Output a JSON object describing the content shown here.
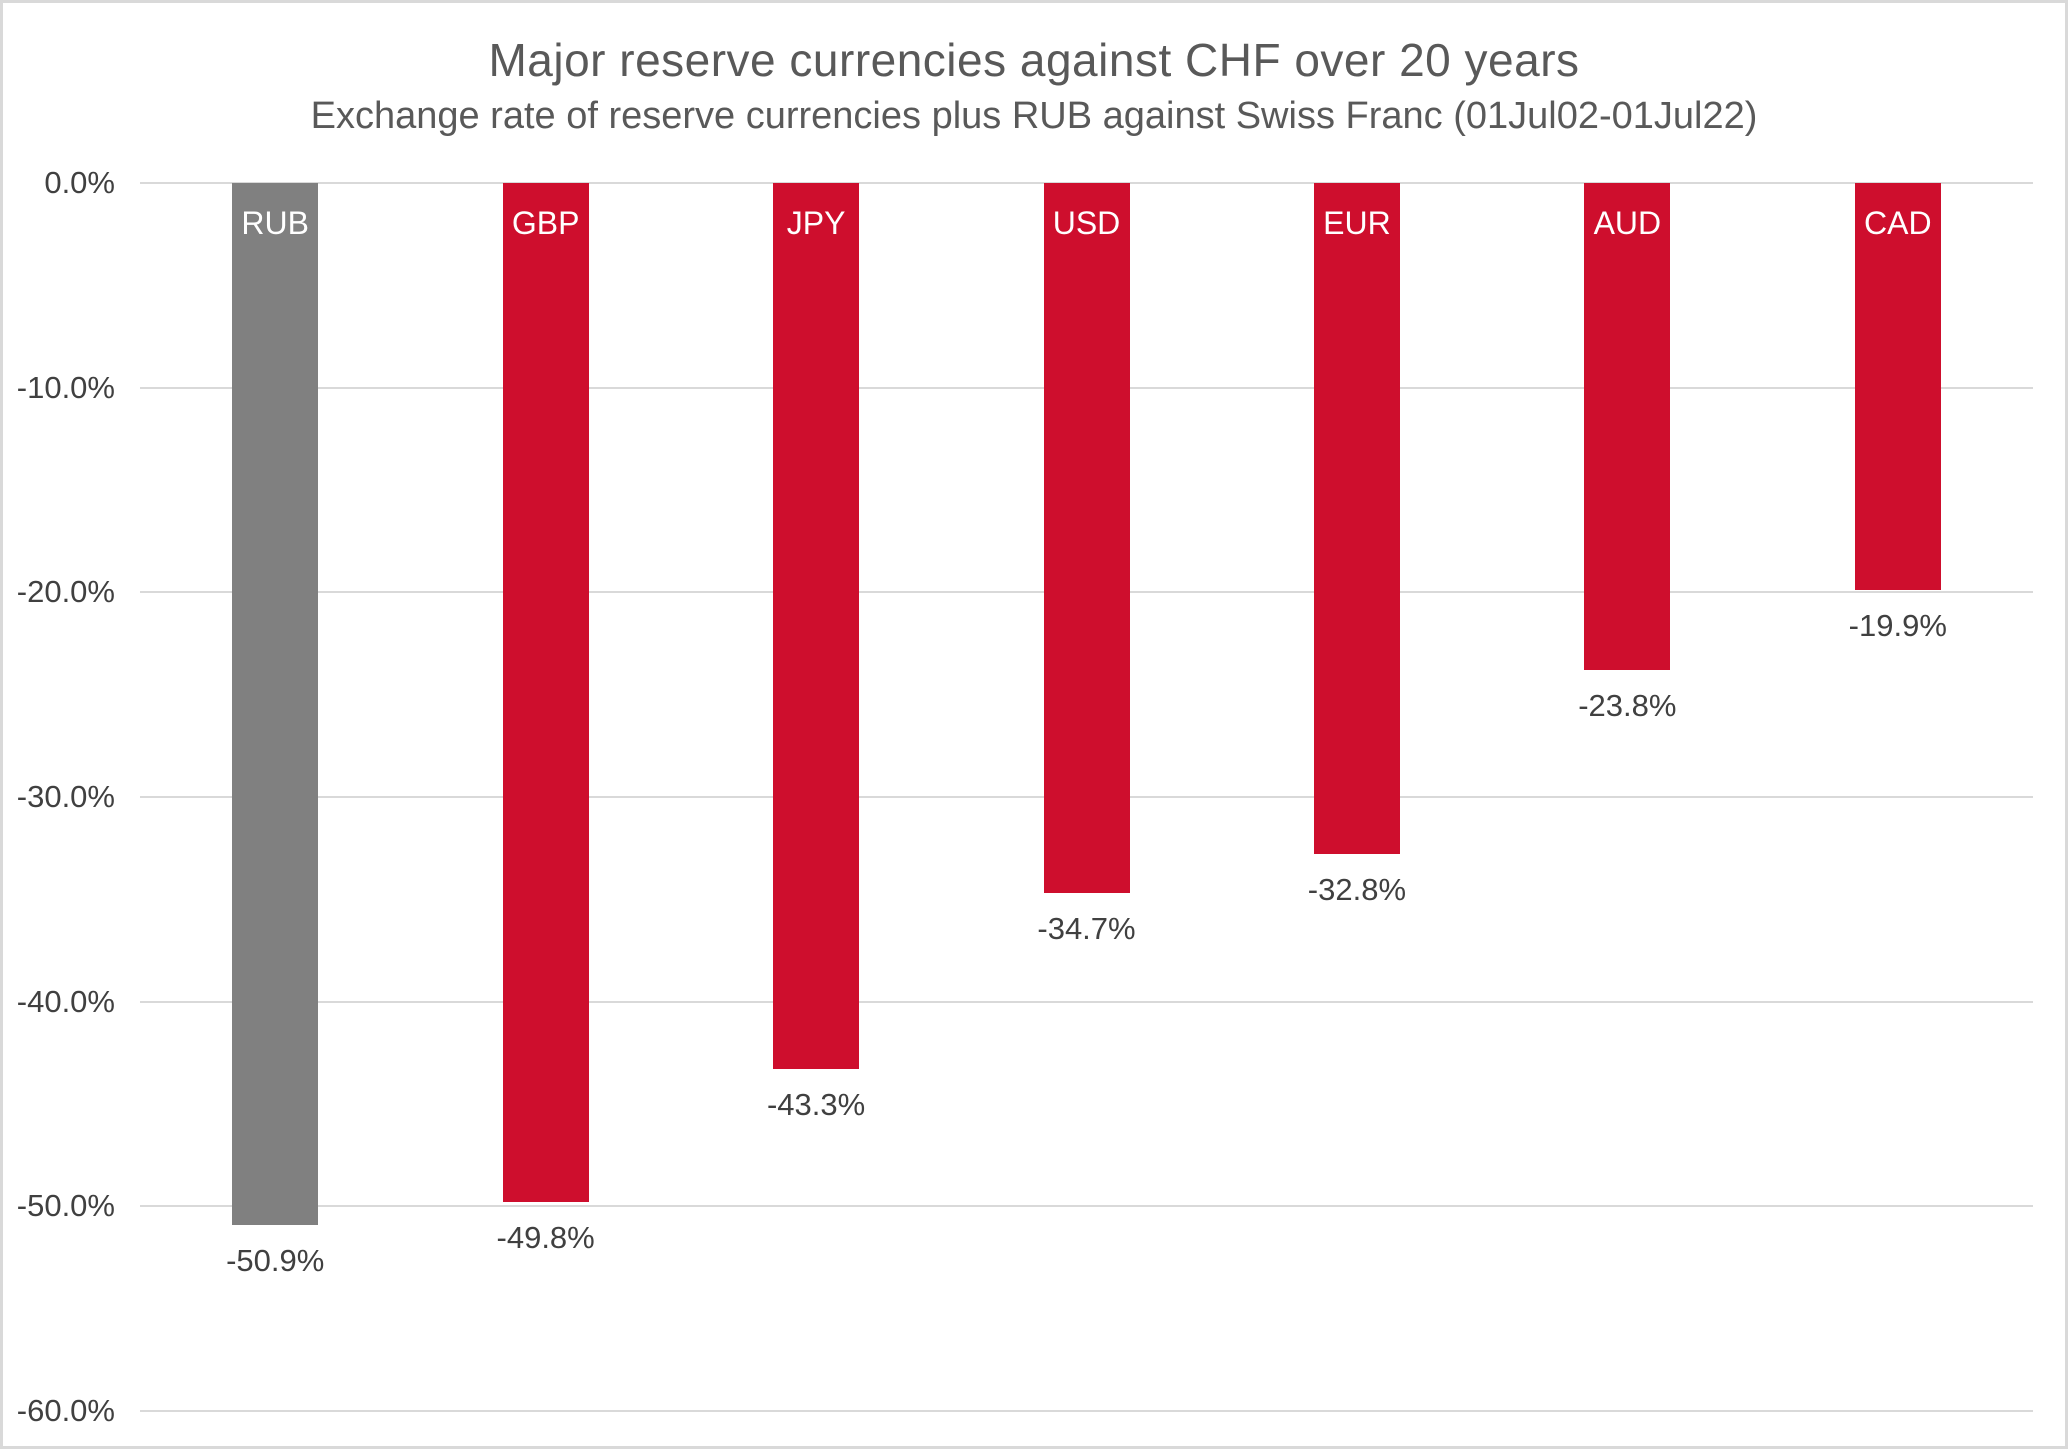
{
  "chart_data": {
    "type": "bar",
    "title": "Major reserve currencies against CHF over 20 years",
    "subtitle": "Exchange rate of reserve currencies plus RUB against Swiss Franc (01Jul02-01Jul22)",
    "categories": [
      "RUB",
      "GBP",
      "JPY",
      "USD",
      "EUR",
      "AUD",
      "CAD"
    ],
    "values": [
      -50.9,
      -49.8,
      -43.3,
      -34.7,
      -32.8,
      -23.8,
      -19.9
    ],
    "value_labels": [
      "-50.9%",
      "-49.8%",
      "-43.3%",
      "-34.7%",
      "-32.8%",
      "-23.8%",
      "-19.9%"
    ],
    "bar_colors": [
      "#808080",
      "#ce0e2d",
      "#ce0e2d",
      "#ce0e2d",
      "#ce0e2d",
      "#ce0e2d",
      "#ce0e2d"
    ],
    "y_tick_labels": [
      "0.0%",
      "-10.0%",
      "-20.0%",
      "-30.0%",
      "-40.0%",
      "-50.0%",
      "-60.0%"
    ],
    "y_tick_values": [
      0,
      -10,
      -20,
      -30,
      -40,
      -50,
      -60
    ],
    "ylim": [
      -60,
      0
    ],
    "xlabel": "",
    "ylabel": "",
    "grid": "horizontal",
    "legend": "none",
    "category_label_position": "inside-top",
    "value_label_position": "below-bar",
    "colors": {
      "bar_default": "#ce0e2d",
      "bar_rub": "#808080",
      "gridline": "#d9d9d9",
      "title_text": "#595959",
      "axis_text": "#404040",
      "value_label_text": "#404040",
      "bar_label_text": "#ffffff",
      "background": "#ffffff",
      "border": "#d9d9d9"
    }
  }
}
